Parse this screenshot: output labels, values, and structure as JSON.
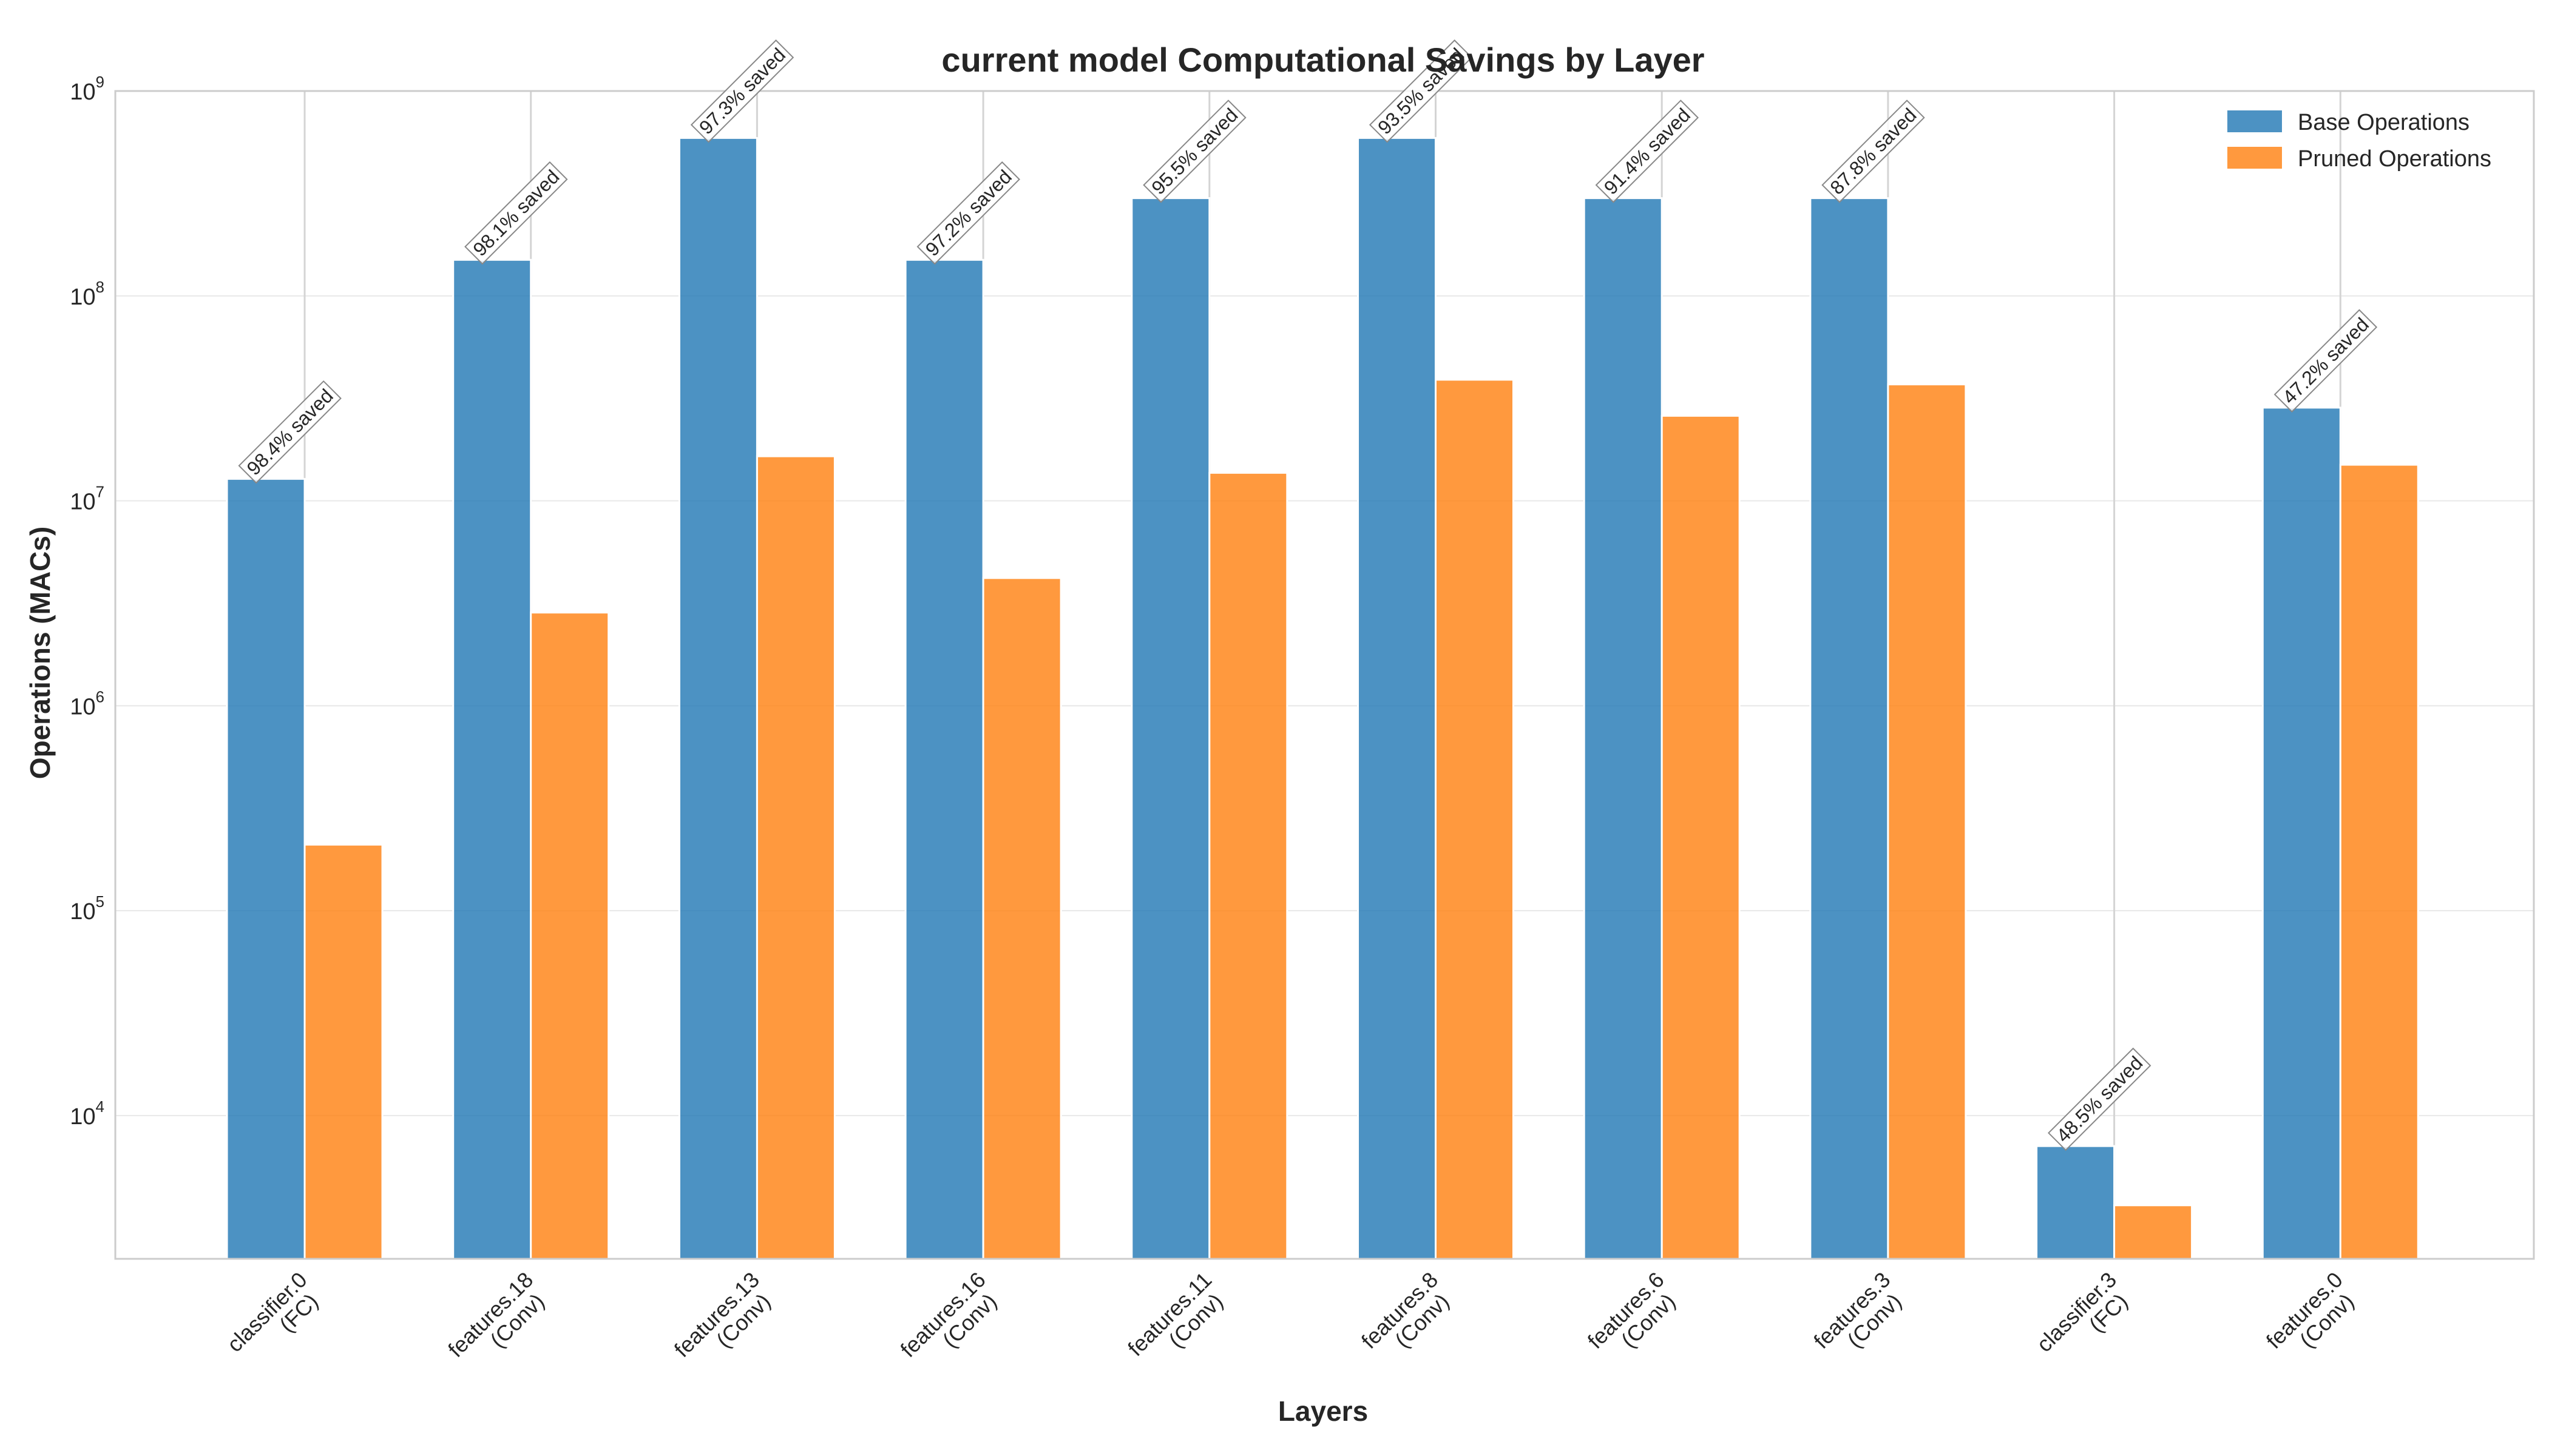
{
  "chart_data": {
    "type": "bar",
    "title": "current model Computational Savings by Layer",
    "xlabel": "Layers",
    "ylabel": "Operations (MACs)",
    "yscale": "log",
    "ylim": [
      2000,
      1000000000
    ],
    "yticks": [
      {
        "value": 10000,
        "base": "10",
        "exp": "4"
      },
      {
        "value": 100000,
        "base": "10",
        "exp": "5"
      },
      {
        "value": 1000000,
        "base": "10",
        "exp": "6"
      },
      {
        "value": 10000000,
        "base": "10",
        "exp": "7"
      },
      {
        "value": 100000000,
        "base": "10",
        "exp": "8"
      },
      {
        "value": 1000000000,
        "base": "10",
        "exp": "9"
      }
    ],
    "categories": [
      [
        "classifier.0",
        "(FC)"
      ],
      [
        "features.18",
        "(Conv)"
      ],
      [
        "features.13",
        "(Conv)"
      ],
      [
        "features.16",
        "(Conv)"
      ],
      [
        "features.11",
        "(Conv)"
      ],
      [
        "features.8",
        "(Conv)"
      ],
      [
        "features.6",
        "(Conv)"
      ],
      [
        "features.3",
        "(Conv)"
      ],
      [
        "classifier.3",
        "(FC)"
      ],
      [
        "features.0",
        "(Conv)"
      ]
    ],
    "series": [
      {
        "name": "Base Operations",
        "color": "#1f77b4",
        "values": [
          12800000,
          150000000,
          590000000,
          150000000,
          300000000,
          590000000,
          300000000,
          300000000,
          7100,
          28500000
        ]
      },
      {
        "name": "Pruned Operations",
        "color": "#ff7f0e",
        "values": [
          210000,
          2850000,
          16500000,
          4200000,
          13700000,
          39000000,
          26000000,
          37000000,
          3650,
          15000000
        ]
      }
    ],
    "annotations": [
      "98.4% saved",
      "98.1% saved",
      "97.3% saved",
      "97.2% saved",
      "95.5% saved",
      "93.5% saved",
      "91.4% saved",
      "87.8% saved",
      "48.5% saved",
      "47.2% saved"
    ],
    "grid": true,
    "legend_position": "top-right"
  }
}
